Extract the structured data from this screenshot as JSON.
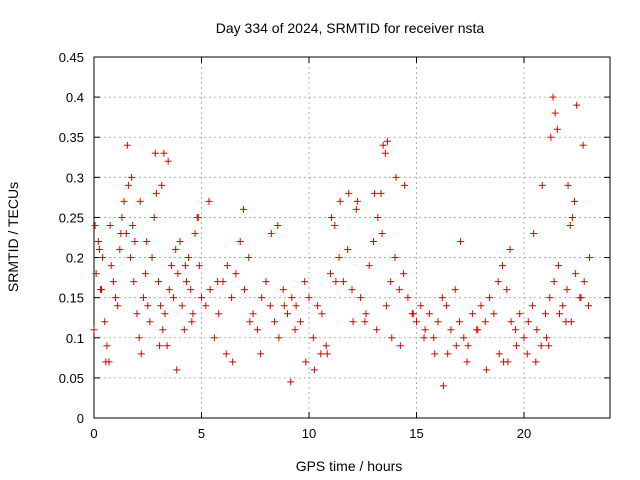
{
  "chart_data": {
    "type": "scatter",
    "title": "Day 334 of 2024, SRMTID for receiver nsta",
    "xlabel": "GPS time / hours",
    "ylabel": "SRMTID / TECUs",
    "xlim": [
      0,
      24
    ],
    "ylim": [
      0,
      0.45
    ],
    "xticks": [
      0,
      5,
      10,
      15,
      20
    ],
    "xtick_labels": [
      "0",
      "5",
      "10",
      "15",
      "20"
    ],
    "yticks": [
      0,
      0.05,
      0.1,
      0.15,
      0.2,
      0.25,
      0.3,
      0.35,
      0.4,
      0.45
    ],
    "ytick_labels": [
      "0",
      "0.05",
      "0.1",
      "0.15",
      "0.2",
      "0.25",
      "0.3",
      "0.35",
      "0.4",
      "0.45"
    ],
    "grid": true,
    "marker": "+",
    "color": "#e00000",
    "series": [
      {
        "name": "SRMTID",
        "x": [
          0.0,
          0.1,
          0.2,
          0.3,
          0.4,
          0.5,
          0.6,
          0.7,
          0.8,
          0.9,
          1.0,
          1.1,
          1.2,
          1.3,
          1.4,
          1.5,
          1.6,
          1.7,
          1.8,
          1.9,
          2.0,
          2.1,
          2.2,
          2.3,
          2.4,
          2.5,
          2.6,
          2.7,
          2.8,
          2.9,
          3.0,
          3.1,
          3.2,
          3.3,
          3.4,
          3.5,
          3.6,
          3.7,
          3.8,
          3.9,
          4.0,
          4.1,
          4.2,
          4.3,
          4.4,
          4.5,
          4.6,
          4.7,
          4.8,
          4.9,
          5.0,
          5.2,
          5.4,
          5.6,
          5.8,
          6.0,
          6.2,
          6.4,
          6.6,
          6.8,
          7.0,
          7.2,
          7.4,
          7.6,
          7.8,
          8.0,
          8.2,
          8.4,
          8.6,
          8.8,
          9.0,
          9.2,
          9.4,
          9.6,
          9.8,
          10.0,
          10.2,
          10.4,
          10.6,
          10.8,
          11.0,
          11.2,
          11.4,
          11.6,
          11.8,
          12.0,
          12.2,
          12.4,
          12.6,
          12.8,
          13.0,
          13.2,
          13.4,
          13.6,
          13.8,
          14.0,
          14.2,
          14.4,
          14.6,
          14.8,
          15.0,
          15.2,
          15.4,
          15.6,
          15.8,
          16.0,
          16.2,
          16.4,
          16.6,
          16.8,
          17.0,
          17.2,
          17.4,
          17.6,
          17.8,
          18.0,
          18.2,
          18.4,
          18.6,
          18.8,
          19.0,
          19.2,
          19.4,
          19.6,
          19.8,
          20.0,
          20.2,
          20.4,
          20.6,
          20.8,
          21.0,
          21.2,
          21.4,
          21.6,
          21.8,
          22.0,
          22.2,
          22.4,
          22.6,
          22.8,
          23.0,
          0.05,
          0.25,
          0.55,
          1.25,
          1.55,
          1.75,
          2.15,
          2.85,
          3.15,
          3.25,
          3.45,
          4.55,
          4.85,
          5.35,
          6.15,
          6.95,
          8.25,
          8.55,
          9.15,
          10.55,
          11.05,
          11.45,
          11.85,
          12.25,
          13.05,
          13.35,
          13.45,
          13.55,
          13.65,
          14.05,
          14.45,
          16.25,
          17.05,
          19.05,
          19.35,
          20.45,
          20.85,
          21.15,
          21.25,
          21.35,
          21.45,
          21.55,
          22.05,
          22.15,
          22.25,
          22.35,
          22.45,
          22.75,
          23.05,
          0.35,
          0.75,
          1.85,
          2.45,
          3.05,
          3.85,
          4.25,
          5.75,
          6.45,
          7.25,
          7.75,
          8.85,
          9.35,
          9.85,
          10.25,
          10.85,
          11.25,
          12.05,
          12.65,
          13.15,
          13.85,
          14.25,
          14.85,
          15.35,
          15.85,
          16.45,
          16.85,
          17.35,
          17.85,
          18.25,
          18.85,
          19.25,
          19.65,
          20.15,
          20.55,
          21.05,
          21.65,
          21.95,
          22.65
        ],
        "y": [
          0.11,
          0.18,
          0.22,
          0.16,
          0.2,
          0.12,
          0.09,
          0.07,
          0.19,
          0.17,
          0.15,
          0.14,
          0.21,
          0.25,
          0.27,
          0.23,
          0.29,
          0.2,
          0.24,
          0.22,
          0.13,
          0.1,
          0.08,
          0.15,
          0.18,
          0.14,
          0.12,
          0.2,
          0.25,
          0.28,
          0.17,
          0.14,
          0.11,
          0.13,
          0.09,
          0.16,
          0.19,
          0.15,
          0.21,
          0.18,
          0.22,
          0.14,
          0.11,
          0.17,
          0.2,
          0.16,
          0.13,
          0.23,
          0.25,
          0.19,
          0.15,
          0.14,
          0.16,
          0.1,
          0.13,
          0.17,
          0.19,
          0.15,
          0.18,
          0.22,
          0.16,
          0.2,
          0.13,
          0.11,
          0.15,
          0.17,
          0.14,
          0.12,
          0.1,
          0.16,
          0.13,
          0.15,
          0.14,
          0.12,
          0.17,
          0.15,
          0.1,
          0.14,
          0.13,
          0.09,
          0.18,
          0.24,
          0.2,
          0.17,
          0.21,
          0.16,
          0.26,
          0.15,
          0.12,
          0.19,
          0.22,
          0.25,
          0.23,
          0.14,
          0.17,
          0.2,
          0.16,
          0.18,
          0.15,
          0.13,
          0.12,
          0.14,
          0.11,
          0.13,
          0.1,
          0.12,
          0.15,
          0.14,
          0.11,
          0.16,
          0.12,
          0.1,
          0.09,
          0.13,
          0.11,
          0.14,
          0.12,
          0.15,
          0.13,
          0.17,
          0.19,
          0.16,
          0.12,
          0.11,
          0.13,
          0.1,
          0.12,
          0.14,
          0.11,
          0.09,
          0.13,
          0.15,
          0.17,
          0.19,
          0.14,
          0.16,
          0.12,
          0.18,
          0.15,
          0.17,
          0.14,
          0.24,
          0.21,
          0.07,
          0.23,
          0.34,
          0.3,
          0.27,
          0.33,
          0.29,
          0.33,
          0.32,
          0.12,
          0.25,
          0.27,
          0.08,
          0.26,
          0.23,
          0.24,
          0.045,
          0.08,
          0.25,
          0.27,
          0.28,
          0.27,
          0.28,
          0.28,
          0.34,
          0.33,
          0.345,
          0.3,
          0.29,
          0.04,
          0.22,
          0.07,
          0.21,
          0.23,
          0.29,
          0.09,
          0.35,
          0.4,
          0.38,
          0.36,
          0.29,
          0.24,
          0.25,
          0.27,
          0.39,
          0.34,
          0.2,
          0.16,
          0.24,
          0.17,
          0.22,
          0.09,
          0.06,
          0.19,
          0.17,
          0.07,
          0.12,
          0.08,
          0.14,
          0.11,
          0.07,
          0.06,
          0.08,
          0.17,
          0.12,
          0.13,
          0.11,
          0.1,
          0.09,
          0.13,
          0.1,
          0.08,
          0.08,
          0.09,
          0.07,
          0.11,
          0.06,
          0.08,
          0.07,
          0.09,
          0.08,
          0.07,
          0.1,
          0.13,
          0.12,
          0.15
        ]
      }
    ]
  }
}
